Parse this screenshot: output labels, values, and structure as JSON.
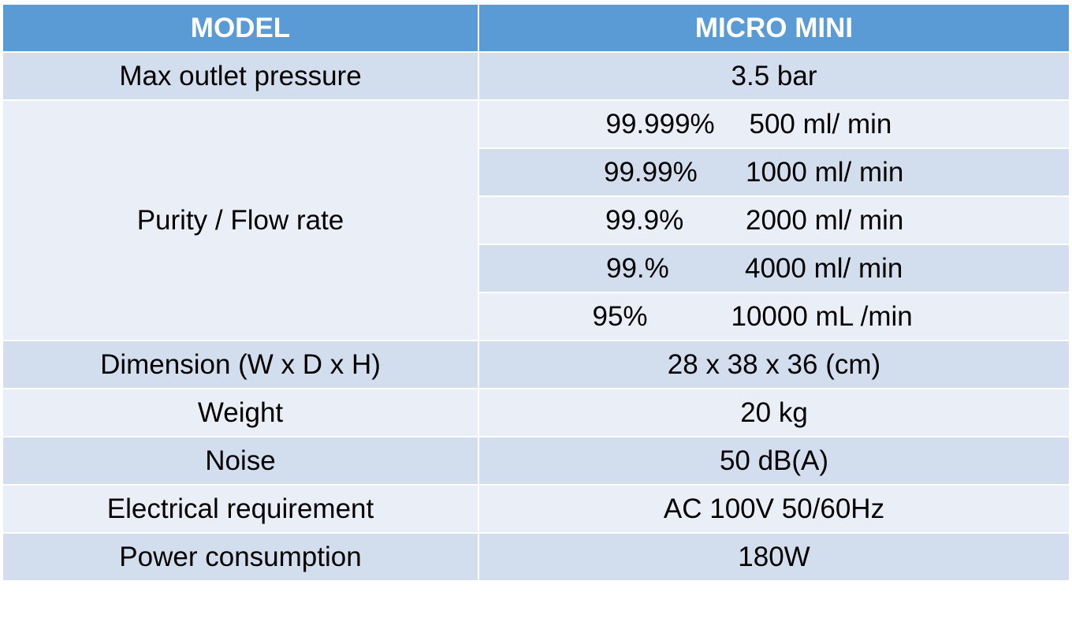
{
  "table": {
    "header": {
      "col1": "MODEL",
      "col2": "MICRO MINI"
    },
    "rows": {
      "max_outlet_pressure": {
        "label": "Max outlet pressure",
        "value": "3.5 bar"
      },
      "purity_flow": {
        "label": "Purity / Flow rate",
        "entries": [
          {
            "purity": "99.999%",
            "flow": "500 ml/ min"
          },
          {
            "purity": "99.99%",
            "flow": "1000 ml/ min"
          },
          {
            "purity": "99.9%",
            "flow": "2000 ml/ min"
          },
          {
            "purity": "99.%",
            "flow": "4000 ml/ min"
          },
          {
            "purity": "95%",
            "flow": "10000 mL /min"
          }
        ]
      },
      "dimension": {
        "label": "Dimension (W x D x H)",
        "value": "28 x 38 x 36 (cm)"
      },
      "weight": {
        "label": "Weight",
        "value": "20 kg"
      },
      "noise": {
        "label": "Noise",
        "value": "50 dB(A)"
      },
      "electrical": {
        "label": "Electrical requirement",
        "value": "AC 100V 50/60Hz"
      },
      "power": {
        "label": "Power consumption",
        "value": "180W"
      }
    }
  },
  "colors": {
    "header_bg": "#5b9bd5",
    "row_dark": "#d2dded",
    "row_light": "#eaeff7",
    "border": "#ffffff"
  }
}
